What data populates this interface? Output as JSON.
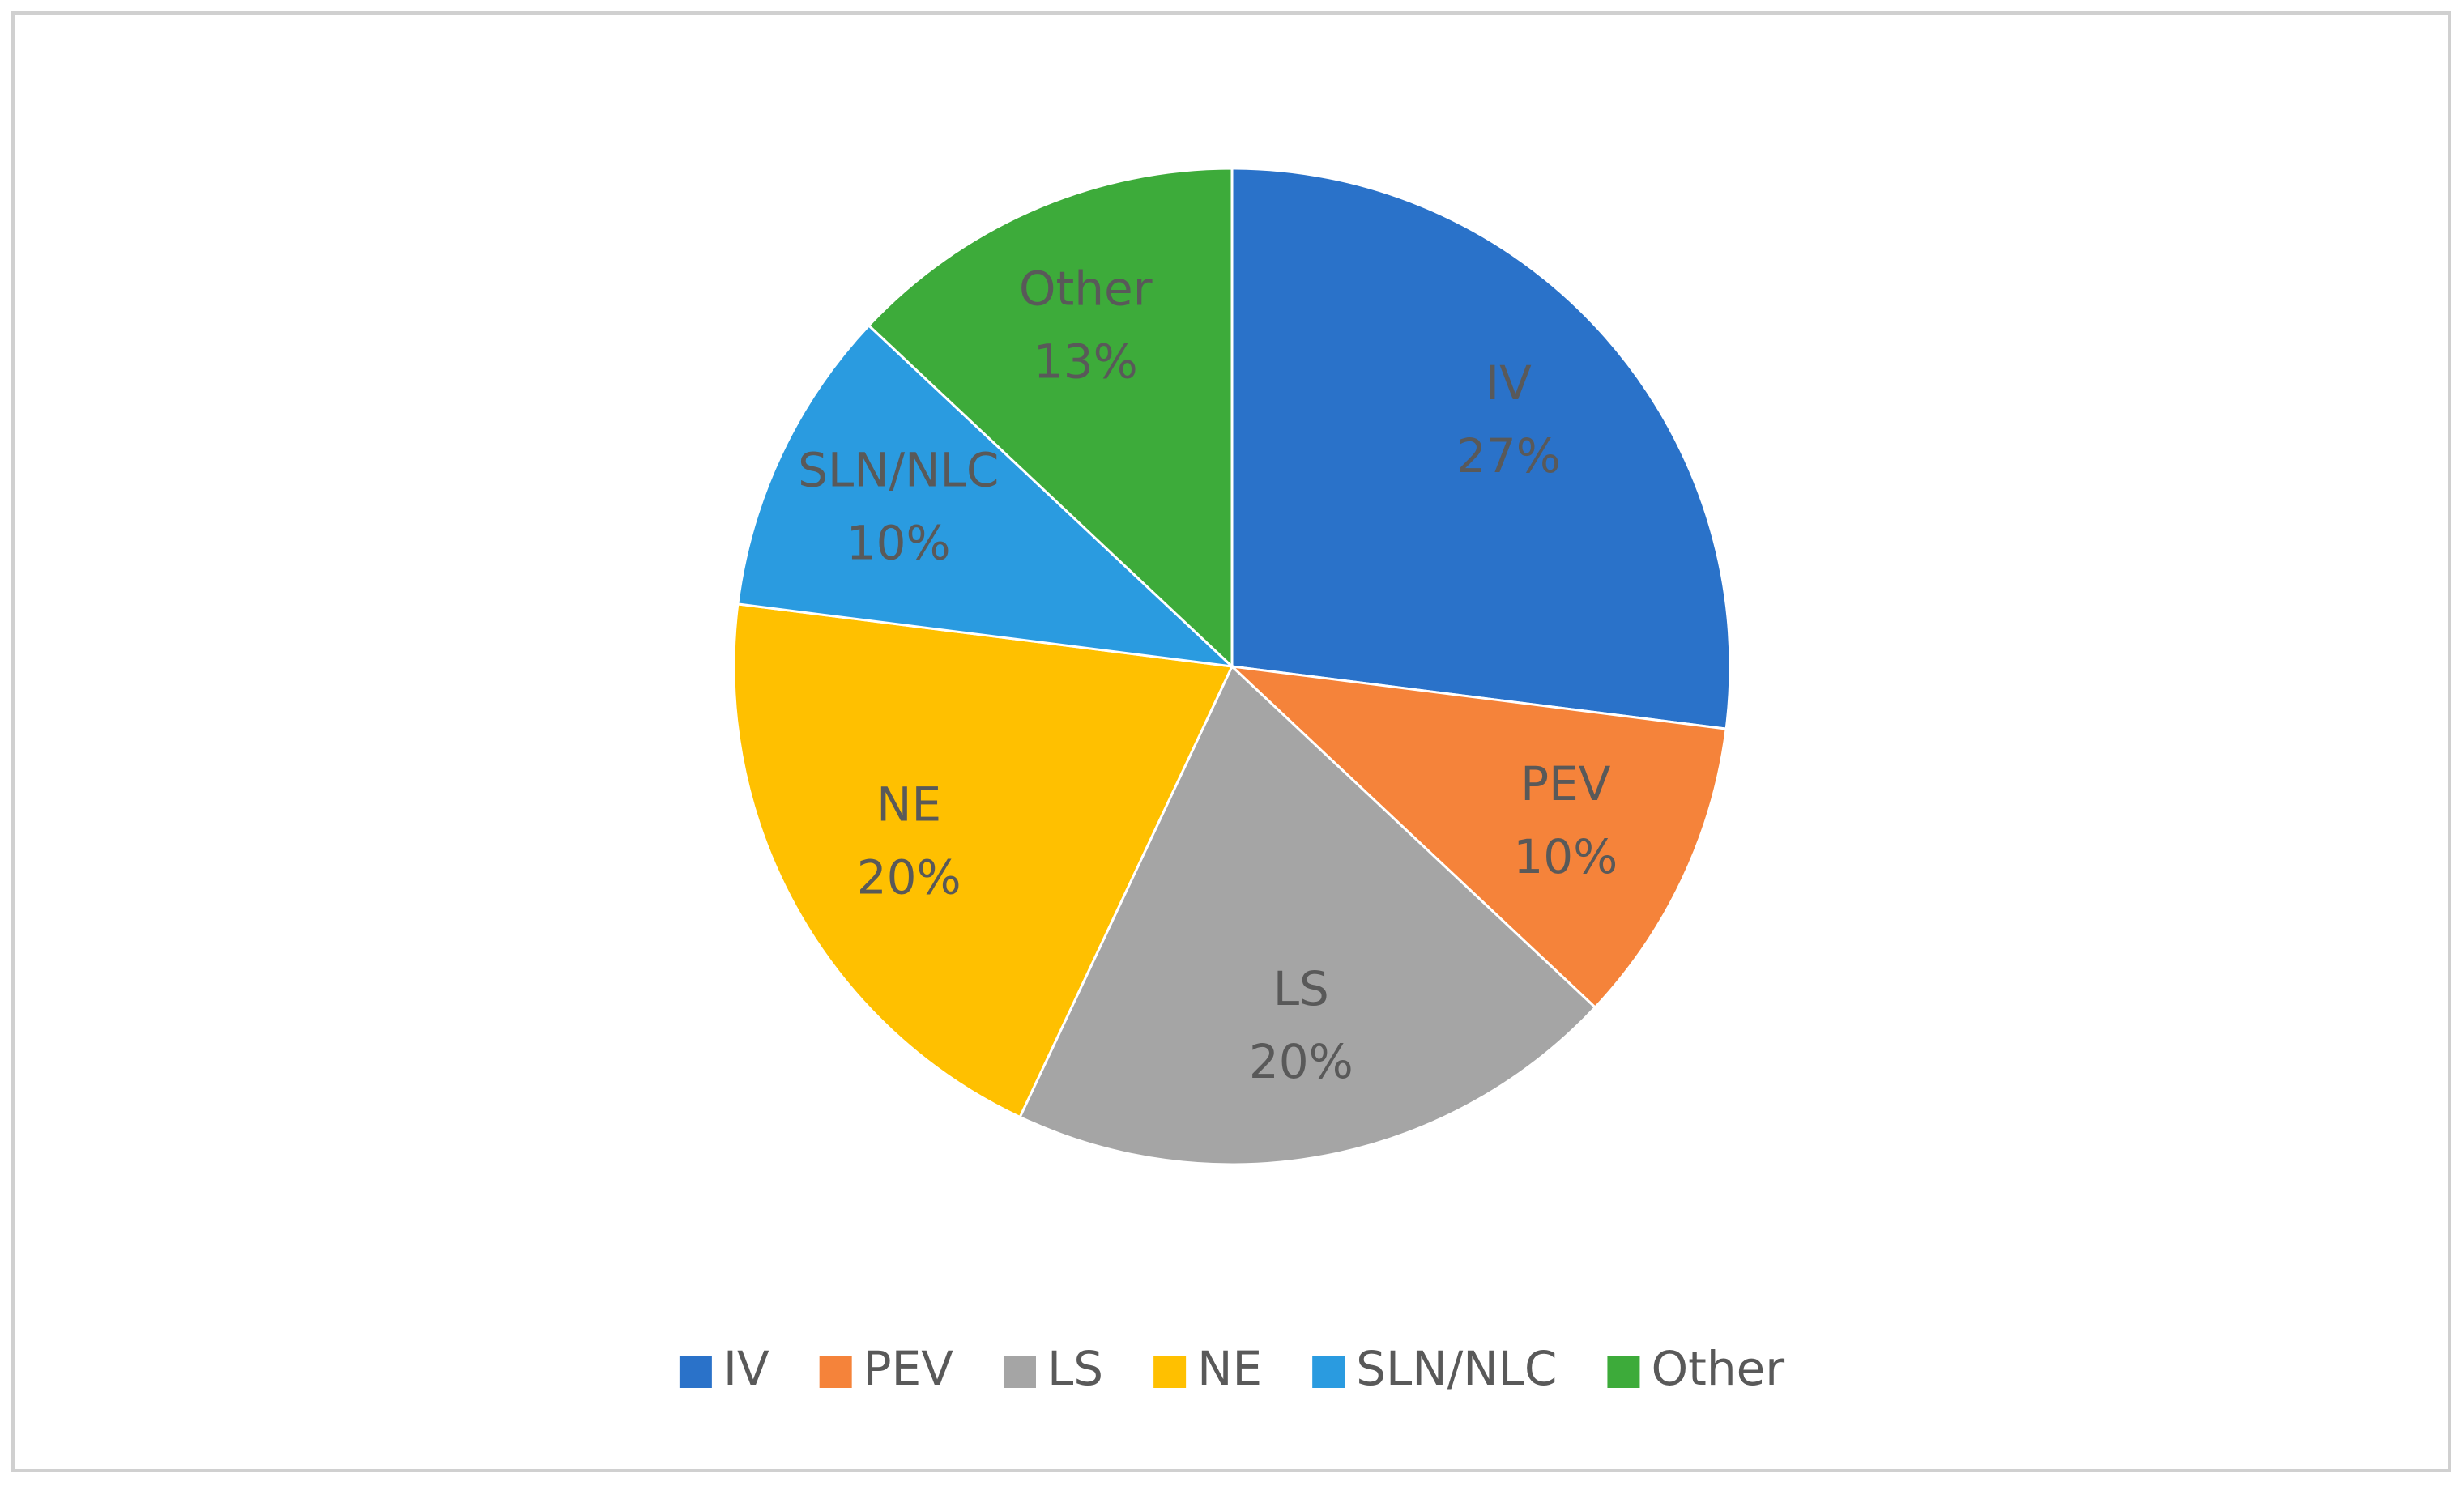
{
  "chart_data": {
    "type": "pie",
    "categories": [
      "IV",
      "PEV",
      "LS",
      "NE",
      "SLN/NLC",
      "Other"
    ],
    "values": [
      27,
      10,
      20,
      20,
      10,
      13
    ],
    "value_labels": [
      "27%",
      "10%",
      "20%",
      "20%",
      "10%",
      "13%"
    ],
    "colors": [
      "#2a72c9",
      "#f5833a",
      "#a5a5a5",
      "#ffc000",
      "#2a9be0",
      "#3dab3a"
    ],
    "legend": "bottom"
  }
}
